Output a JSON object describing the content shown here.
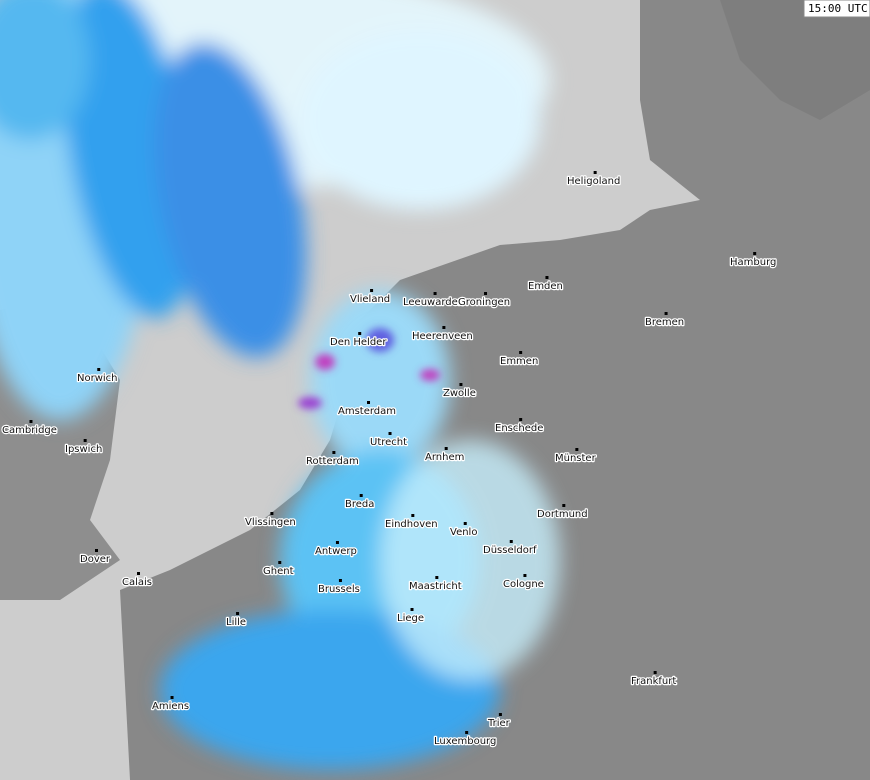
{
  "timestamp": "15:00 UTC",
  "cities": [
    "Heligoland",
    "Hamburg",
    "Emden",
    "Bremen",
    "Vlieland",
    "Leeuwarden",
    "Groningen",
    "Den Helder",
    "Heerenveen",
    "Emmen",
    "Norwich",
    "Zwolle",
    "Amsterdam",
    "Cambridge",
    "Enschede",
    "Ipswich",
    "Utrecht",
    "Rotterdam",
    "Arnhem",
    "Münster",
    "Dortmund",
    "Breda",
    "Vlissingen",
    "Eindhoven",
    "Venlo",
    "Düsseldorf",
    "Antwerp",
    "Dover",
    "Ghent",
    "Calais",
    "Cologne",
    "Brussels",
    "Maastricht",
    "Liege",
    "Lille",
    "Frankfurt",
    "Amiens",
    "Trier",
    "Luxembourg"
  ]
}
